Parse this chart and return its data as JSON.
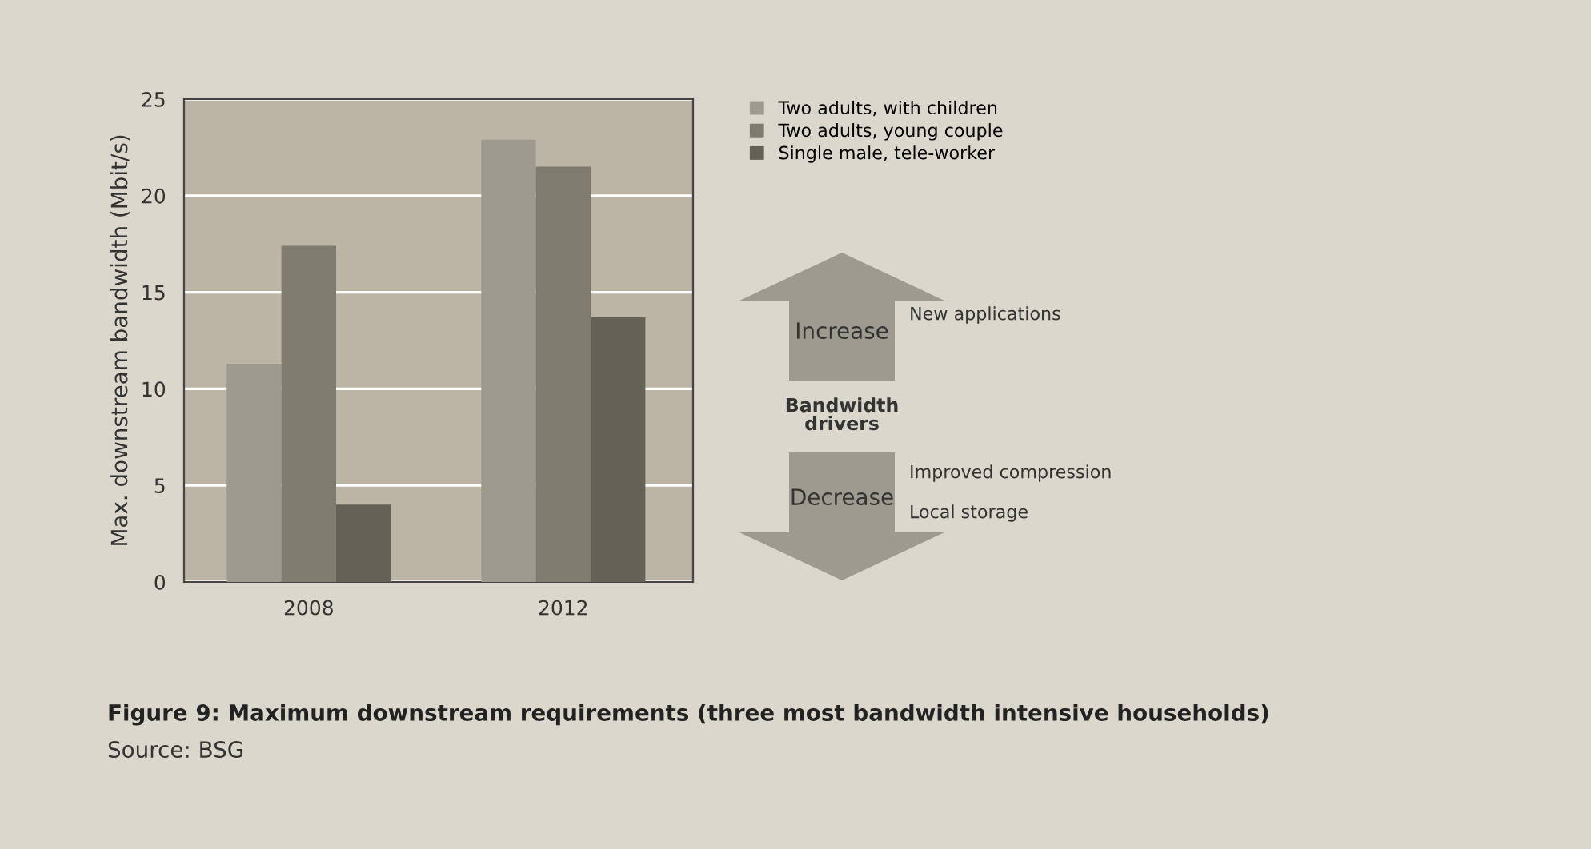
{
  "chart_data": {
    "type": "bar",
    "title": "Figure 9: Maximum downstream requirements (three most bandwidth intensive households)",
    "ylabel": "Max. downstream bandwidth (Mbit/s)",
    "categories": [
      "2008",
      "2012"
    ],
    "series": [
      {
        "name": "Two adults, with children",
        "color": "#9e9a8f",
        "values": [
          11.3,
          22.9
        ]
      },
      {
        "name": "Two adults, young couple",
        "color": "#7e7b6f",
        "values": [
          17.4,
          21.5
        ]
      },
      {
        "name": "Single male, tele-worker",
        "color": "#646157",
        "values": [
          4.0,
          13.7
        ]
      }
    ],
    "ylim": [
      0,
      25
    ],
    "yticks": [
      0,
      5,
      10,
      15,
      20,
      25
    ],
    "grid": "y",
    "legend": "top right",
    "annotations": [
      "Increase",
      "New applications",
      "Bandwidth\ndrivers",
      "Decrease",
      "Improved compression",
      "Local storage",
      "Source: BSG"
    ]
  }
}
